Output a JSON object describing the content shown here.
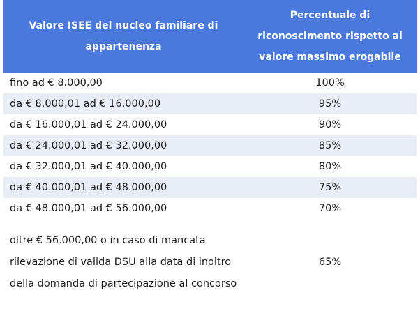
{
  "table": {
    "headers": [
      "Valore ISEE del nucleo familiare di appartenenza",
      "Percentuale di riconoscimento rispetto al valore massimo erogabile"
    ],
    "rows": [
      {
        "range": "fino ad € 8.000,00",
        "percent": "100%"
      },
      {
        "range": "da € 8.000,01 ad € 16.000,00",
        "percent": "95%"
      },
      {
        "range": "da € 16.000,01 ad € 24.000,00",
        "percent": "90%"
      },
      {
        "range": "da € 24.000,01 ad € 32.000,00",
        "percent": "85%"
      },
      {
        "range": "da € 32.000,01 ad € 40.000,00",
        "percent": "80%"
      },
      {
        "range": "da € 40.000,01 ad € 48.000,00",
        "percent": "75%"
      },
      {
        "range": "da € 48.000,01 ad € 56.000,00",
        "percent": "70%"
      },
      {
        "range": "oltre € 56.000,00 o in caso di mancata rilevazione di valida DSU alla data di inoltro della domanda di partecipazione al concorso",
        "percent": "65%"
      }
    ]
  },
  "colors": {
    "header_bg": "#4a78dd",
    "header_text": "#ffffff",
    "shaded_row": "#e9edf5"
  }
}
